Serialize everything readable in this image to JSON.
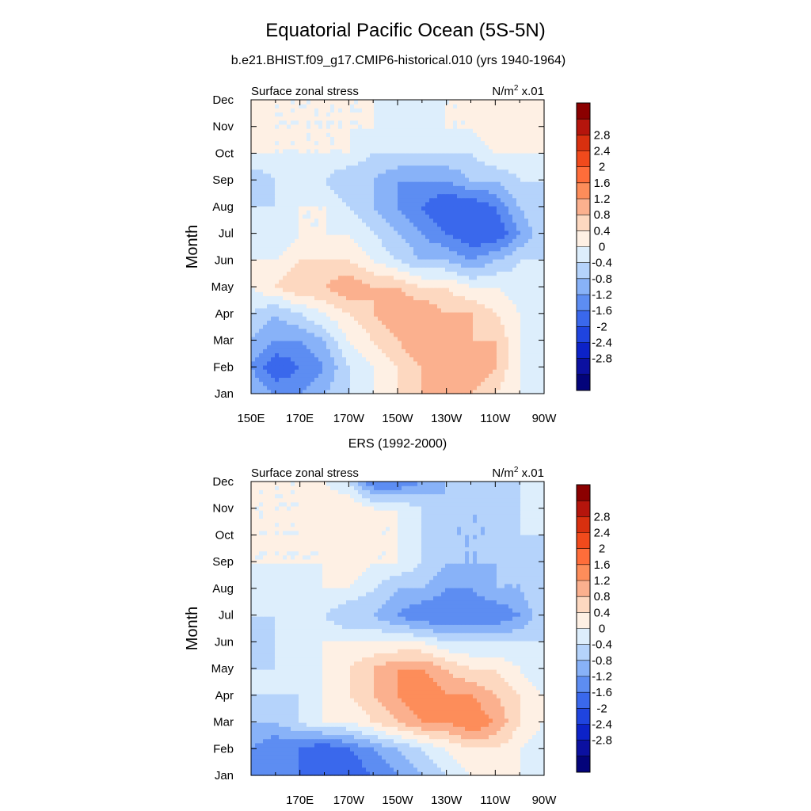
{
  "figure": {
    "title": "Equatorial Pacific Ocean (5S-5N)",
    "subtitle": "b.e21.BHIST.f09_g17.CMIP6-historical.010 (yrs 1940-1964)"
  },
  "colorbar": {
    "labels": [
      "2.8",
      "2.4",
      "2",
      "1.6",
      "1.2",
      "0.8",
      "0.4",
      "0",
      "-0.4",
      "-0.8",
      "-1.2",
      "-1.6",
      "-2",
      "-2.4",
      "-2.8"
    ],
    "colors": [
      "#8b0000",
      "#b5150c",
      "#d8300f",
      "#f14a1c",
      "#ff6d3a",
      "#fd8d5a",
      "#fbb08e",
      "#fdd8c0",
      "#fef0e4",
      "#ddeefc",
      "#b5d3fb",
      "#88b2f8",
      "#5d8df2",
      "#3a68ec",
      "#1f44df",
      "#0c22c8",
      "#0b10a0",
      "#03037a"
    ]
  },
  "chart_data": [
    {
      "type": "heatmap",
      "subtitle": "",
      "left_label": "Surface zonal stress",
      "units_label": "N/m",
      "units_sup": "2",
      "units_suffix": " x.01",
      "ylabel": "Month",
      "xlabel": "",
      "x_ticks": [
        "150E",
        "170E",
        "170W",
        "150W",
        "130W",
        "110W",
        "90W"
      ],
      "y_ticks": [
        "Jan",
        "Feb",
        "Mar",
        "Apr",
        "May",
        "Jun",
        "Jul",
        "Aug",
        "Sep",
        "Oct",
        "Nov",
        "Dec"
      ],
      "x_lon": [
        150,
        160,
        170,
        180,
        190,
        200,
        210,
        220,
        230,
        240,
        250,
        260,
        270
      ],
      "y_month": [
        1,
        2,
        3,
        4,
        5,
        6,
        7,
        8,
        9,
        10,
        11,
        12
      ],
      "values": [
        [
          -0.4,
          -0.8,
          -0.8,
          -0.4,
          0,
          0.4,
          0.8,
          1.2,
          1.2,
          1.2,
          0.8,
          0.4,
          0
        ],
        [
          -0.8,
          -1.6,
          -1.2,
          -0.8,
          0,
          0.4,
          0.8,
          1.2,
          1.6,
          1.6,
          1.2,
          0.4,
          0
        ],
        [
          -0.4,
          -0.8,
          -0.8,
          -0.4,
          0.4,
          0.8,
          1.2,
          1.6,
          1.6,
          1.2,
          1.2,
          0.4,
          0
        ],
        [
          0,
          -0.4,
          0,
          0.4,
          0.8,
          1.2,
          1.6,
          1.6,
          1.2,
          1.2,
          0.8,
          0.4,
          0.2
        ],
        [
          0.4,
          0.8,
          1.2,
          1.2,
          1.6,
          1.2,
          1.2,
          0.8,
          0.8,
          0.4,
          0.4,
          0.2,
          0
        ],
        [
          0.4,
          0.4,
          0.8,
          0.8,
          0.8,
          0.4,
          0,
          -0.4,
          -0.4,
          -0.8,
          -0.4,
          0,
          0
        ],
        [
          0,
          0,
          0.4,
          0.4,
          0.4,
          0,
          -0.4,
          -0.8,
          -1.2,
          -1.6,
          -1.6,
          -0.8,
          0
        ],
        [
          0,
          0,
          0.4,
          0.4,
          0,
          -0.4,
          -0.8,
          -1.2,
          -1.6,
          -1.6,
          -1.2,
          -0.4,
          0
        ],
        [
          -0.4,
          0,
          0.4,
          0,
          -0.4,
          -0.4,
          -0.8,
          -0.8,
          -0.8,
          -0.4,
          -0.4,
          0,
          0
        ],
        [
          0.4,
          0.4,
          0.4,
          0.4,
          0.4,
          0,
          0,
          0,
          0,
          0,
          0.4,
          0.4,
          0.4
        ],
        [
          0.8,
          0.4,
          0.4,
          0.4,
          0.4,
          0.4,
          0,
          0,
          0.4,
          0.4,
          0.8,
          0.8,
          0.8
        ],
        [
          0.4,
          0.4,
          0.4,
          0.4,
          0.4,
          0.4,
          0.4,
          0.4,
          0.4,
          0.4,
          0.4,
          0.4,
          0.4
        ]
      ]
    },
    {
      "type": "heatmap",
      "subtitle": "ERS (1992-2000)",
      "left_label": "Surface zonal stress",
      "units_label": "N/m",
      "units_sup": "2",
      "units_suffix": " x.01",
      "ylabel": "Month",
      "xlabel": "",
      "x_ticks": [
        "",
        "170E",
        "170W",
        "150W",
        "130W",
        "110W",
        "90W"
      ],
      "y_ticks": [
        "Jan",
        "Feb",
        "Mar",
        "Apr",
        "May",
        "Jun",
        "Jul",
        "Aug",
        "Sep",
        "Oct",
        "Nov",
        "Dec"
      ],
      "x_lon": [
        150,
        160,
        170,
        180,
        190,
        200,
        210,
        220,
        230,
        240,
        250,
        260,
        270
      ],
      "y_month": [
        1,
        2,
        3,
        4,
        5,
        6,
        7,
        8,
        9,
        10,
        11,
        12
      ],
      "values": [
        [
          -0.8,
          -0.8,
          -1.2,
          -1.6,
          -1.6,
          -1.2,
          -0.8,
          -0.4,
          0,
          0.4,
          0.4,
          0.4,
          0.2
        ],
        [
          -0.8,
          -1.2,
          -1.2,
          -1.6,
          -1.2,
          -0.8,
          -0.4,
          0,
          0.4,
          0.8,
          0.8,
          0.4,
          0
        ],
        [
          -0.4,
          -0.4,
          0,
          0.4,
          0.4,
          0.8,
          1.2,
          1.6,
          1.6,
          2,
          1.6,
          0.8,
          0.4
        ],
        [
          0,
          0,
          0,
          0.4,
          0.8,
          1.2,
          1.6,
          2,
          1.6,
          1.6,
          1.2,
          0.8,
          0.4
        ],
        [
          0,
          0,
          0.4,
          0.4,
          0.8,
          1.2,
          1.6,
          1.6,
          1.2,
          0.8,
          0.8,
          0.4,
          0
        ],
        [
          -0.4,
          0,
          0,
          0.4,
          0.4,
          0.4,
          0.4,
          0.4,
          0,
          0,
          0,
          0,
          0
        ],
        [
          0,
          0,
          0,
          0,
          -0.4,
          -0.4,
          -0.8,
          -1.2,
          -1.2,
          -1.2,
          -1.2,
          -0.8,
          0
        ],
        [
          0,
          0,
          0,
          0.4,
          0.4,
          0,
          -0.4,
          -0.4,
          -0.8,
          -0.8,
          -0.4,
          -0.4,
          0
        ],
        [
          0.4,
          0.4,
          0.4,
          0.4,
          0.8,
          0.4,
          0.4,
          0,
          -0.4,
          -0.4,
          -0.4,
          -0.4,
          0
        ],
        [
          0.4,
          0.4,
          0.4,
          0.4,
          0.4,
          0.4,
          0.4,
          0,
          -0.4,
          -0.4,
          -0.4,
          0,
          0
        ],
        [
          0.4,
          0.4,
          0.4,
          0.8,
          0.8,
          0.4,
          0.4,
          0,
          -0.4,
          -0.4,
          -0.4,
          0,
          0
        ],
        [
          0.4,
          0.4,
          0.4,
          0.4,
          0,
          -1.2,
          -1.2,
          -0.8,
          -0.4,
          0,
          0,
          0,
          0
        ]
      ]
    }
  ]
}
